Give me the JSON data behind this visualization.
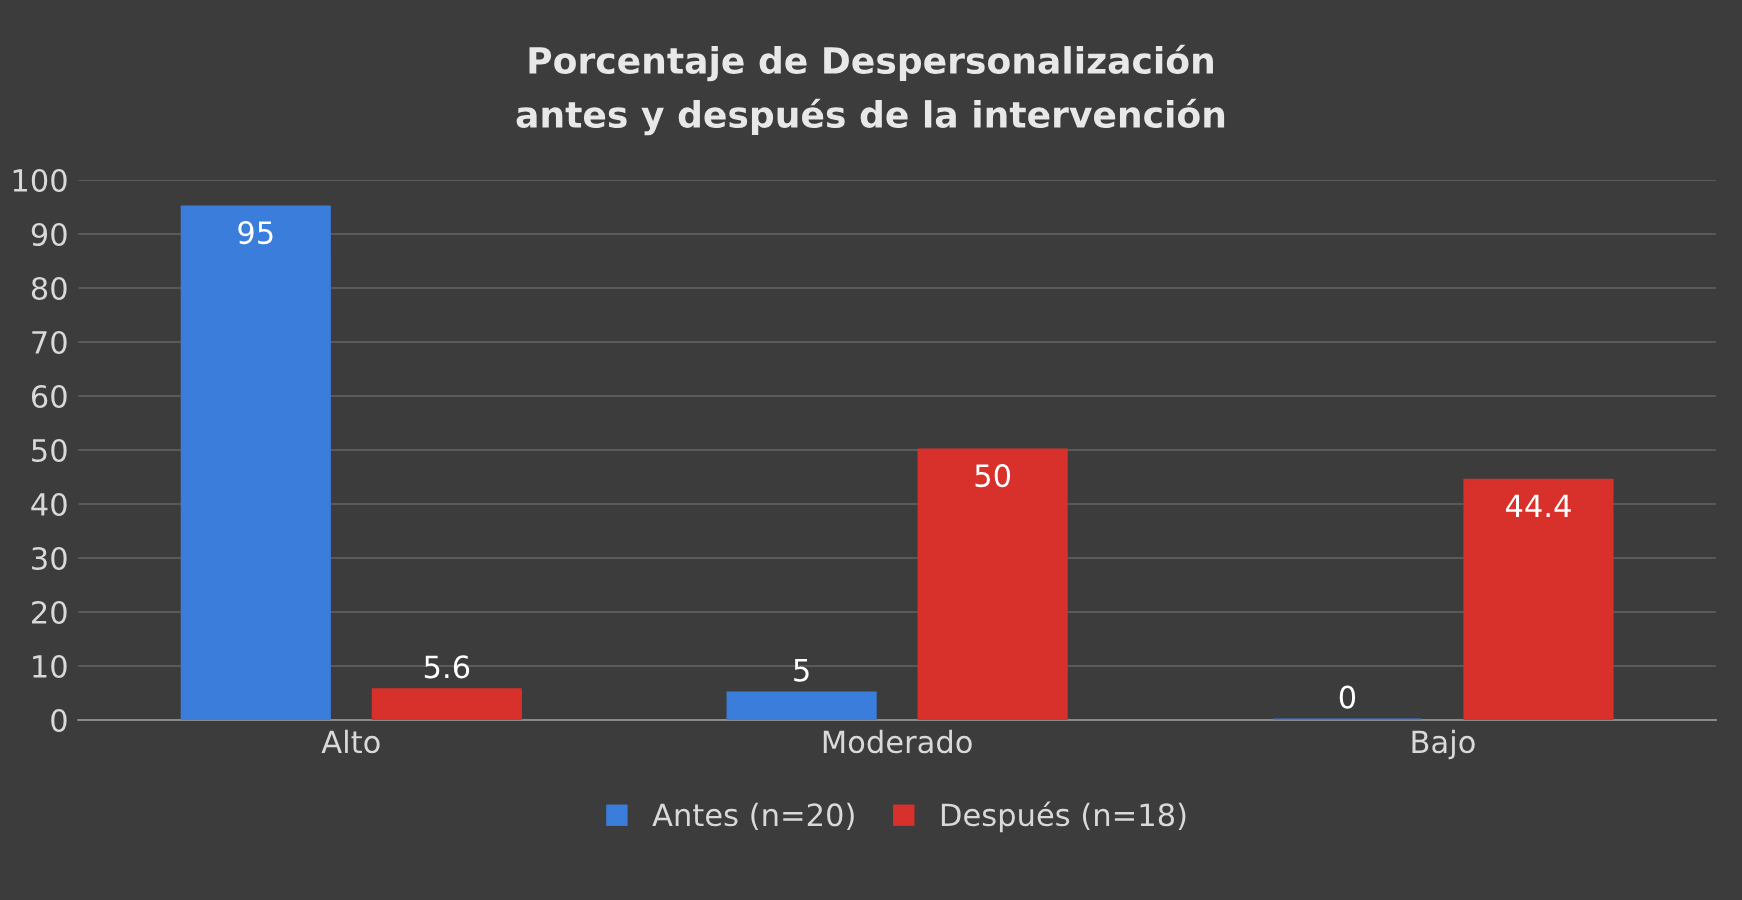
{
  "chart_data": {
    "type": "bar",
    "title": "Porcentaje de Despersonalización\nantes y después de la intervención",
    "categories": [
      "Alto",
      "Moderado",
      "Bajo"
    ],
    "series": [
      {
        "name": "Antes (n=20)",
        "color": "#3b7ddb",
        "values": [
          95,
          5,
          0
        ]
      },
      {
        "name": "Después (n=18)",
        "color": "#d8302a",
        "values": [
          5.6,
          50,
          44.4
        ]
      }
    ],
    "ylim": [
      0,
      100
    ],
    "yticks": [
      0,
      10,
      20,
      30,
      40,
      50,
      60,
      70,
      80,
      90,
      100
    ],
    "grid": "y",
    "legend": "bottom",
    "data_labels": true
  }
}
